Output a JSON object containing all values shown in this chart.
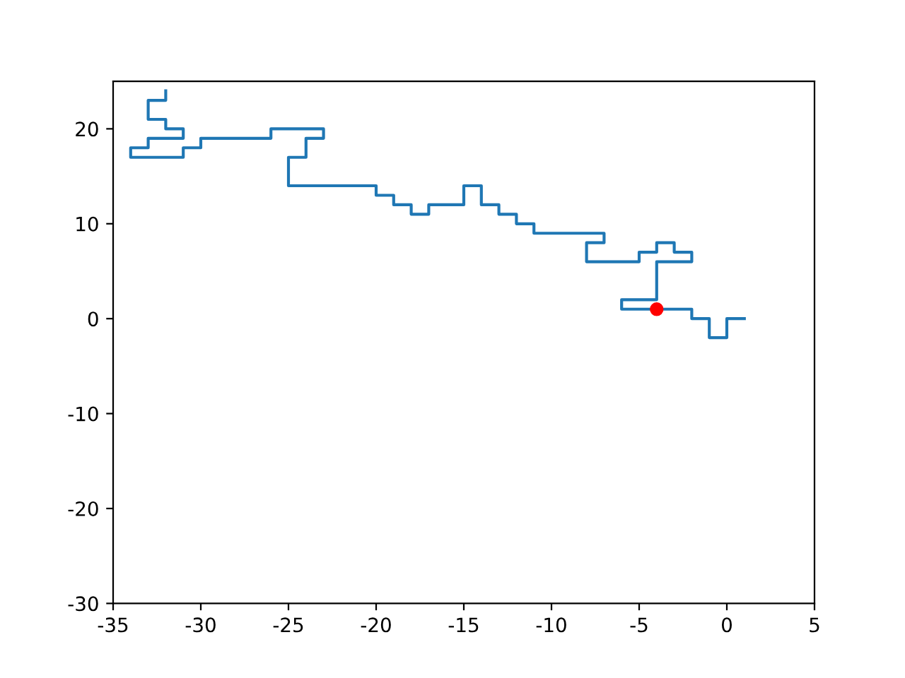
{
  "chart_data": {
    "type": "line",
    "xlim": [
      -35,
      5
    ],
    "ylim": [
      -30,
      25
    ],
    "xticks": [
      -35,
      -30,
      -25,
      -20,
      -15,
      -10,
      -5,
      0,
      5
    ],
    "yticks": [
      -30,
      -20,
      -10,
      0,
      10,
      20
    ],
    "grid": false,
    "legend": false,
    "series": [
      {
        "color": "#1f77b4",
        "marker": "none",
        "line_style": "solid",
        "x": [
          1,
          0,
          0,
          -1,
          -1,
          -2,
          -2,
          -6,
          -6,
          -4,
          -4,
          -2,
          -2,
          -3,
          -3,
          -4,
          -4,
          -5,
          -5,
          -8,
          -8,
          -7,
          -7,
          -11,
          -11,
          -12,
          -12,
          -13,
          -13,
          -14,
          -14,
          -15,
          -15,
          -17,
          -17,
          -18,
          -18,
          -19,
          -19,
          -20,
          -20,
          -25,
          -25,
          -24,
          -24,
          -23,
          -23,
          -26,
          -26,
          -30,
          -30,
          -31,
          -31,
          -34,
          -34,
          -33,
          -33,
          -31,
          -31,
          -32,
          -32,
          -33,
          -33,
          -32,
          -32
        ],
        "values": [
          0,
          0,
          -2,
          -2,
          0,
          0,
          1,
          1,
          2,
          2,
          6,
          6,
          7,
          7,
          8,
          8,
          7,
          7,
          6,
          6,
          8,
          8,
          9,
          9,
          10,
          10,
          11,
          11,
          12,
          12,
          14,
          14,
          12,
          12,
          11,
          11,
          12,
          12,
          13,
          13,
          14,
          14,
          17,
          17,
          19,
          19,
          20,
          20,
          19,
          19,
          18,
          18,
          17,
          17,
          18,
          18,
          19,
          19,
          20,
          20,
          21,
          21,
          23,
          23,
          24
        ]
      },
      {
        "type": "scatter",
        "color": "#ff0000",
        "marker": "circle",
        "x": [
          -4
        ],
        "values": [
          1
        ]
      }
    ]
  }
}
